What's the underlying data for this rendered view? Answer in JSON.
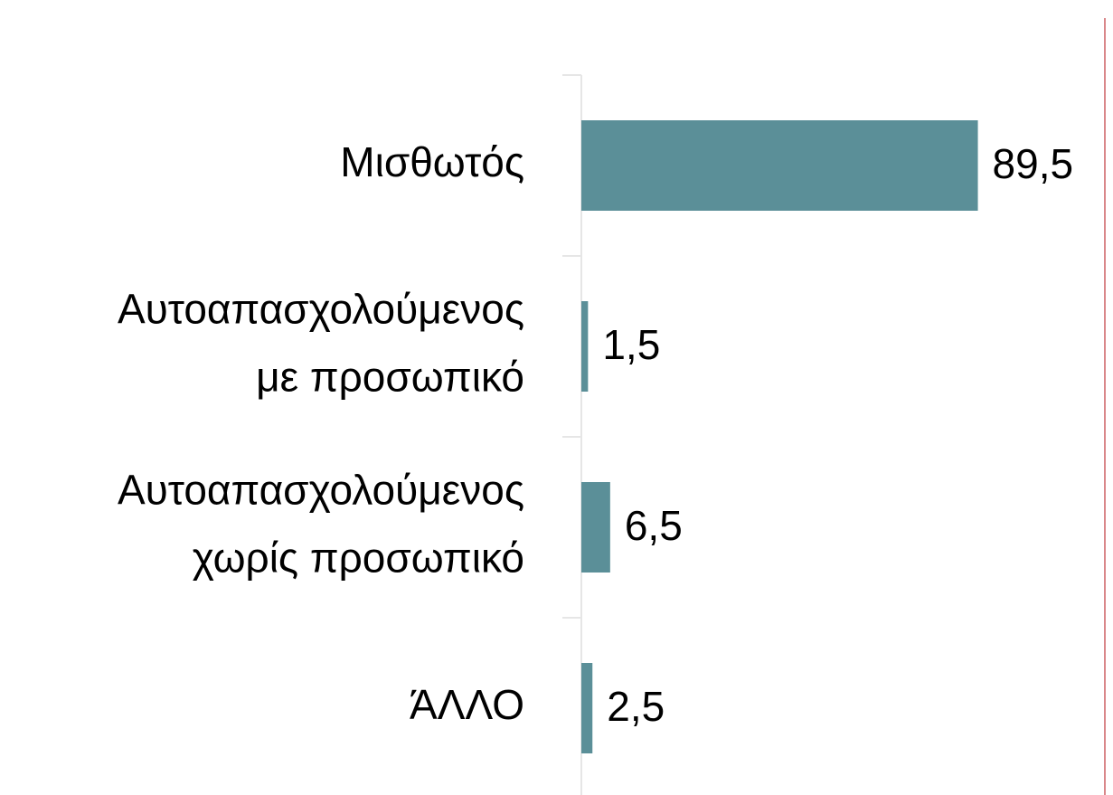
{
  "chart_data": {
    "type": "hbar",
    "categories": [
      [
        "Μισθωτός"
      ],
      [
        "Αυτοαπασχολούμενος",
        "με προσωπικό"
      ],
      [
        "Αυτοαπασχολούμενος",
        "χωρίς προσωπικό"
      ],
      [
        "ΆΛΛΟ"
      ]
    ],
    "values": [
      89.5,
      1.5,
      6.5,
      2.5
    ],
    "value_labels": [
      "89,5",
      "1,5",
      "6,5",
      "2,5"
    ],
    "color": "#5b8f98",
    "xlim": [
      0,
      100
    ]
  }
}
